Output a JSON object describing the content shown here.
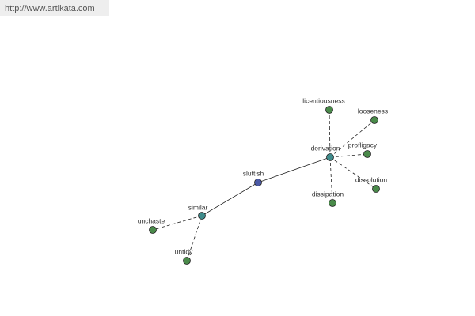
{
  "header": {
    "url": "http://www.artikata.com"
  },
  "nodes": [
    {
      "label": "sluttish"
    },
    {
      "label": "derivation"
    },
    {
      "label": "similar"
    },
    {
      "label": "licentiousness"
    },
    {
      "label": "looseness"
    },
    {
      "label": "profligacy"
    },
    {
      "label": "dissolution"
    },
    {
      "label": "dissipation"
    },
    {
      "label": "unchaste"
    },
    {
      "label": "untidy"
    }
  ]
}
